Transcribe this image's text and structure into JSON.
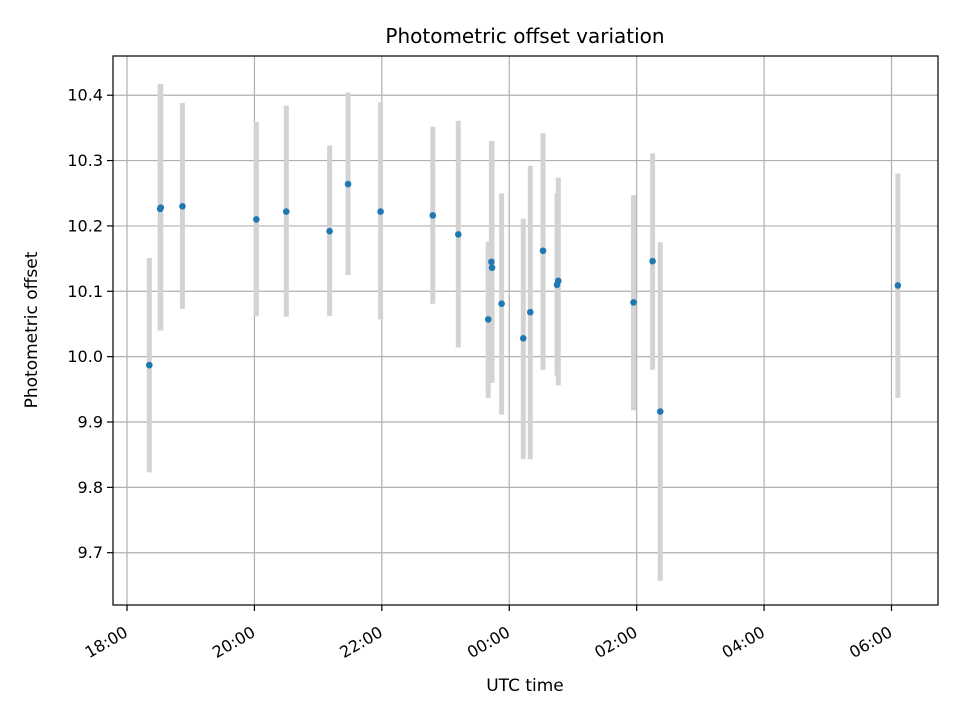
{
  "chart_data": {
    "type": "scatter",
    "title": "Photometric offset variation",
    "xlabel": "UTC time",
    "ylabel": "Photometric offset",
    "x_axis_kind": "time (hours; values after 24 are the next day)",
    "xlim": [
      17.78,
      30.73
    ],
    "ylim": [
      9.62,
      10.46
    ],
    "xticks": [
      18,
      20,
      22,
      24,
      26,
      28,
      30
    ],
    "xtick_labels": [
      "18:00",
      "20:00",
      "22:00",
      "00:00",
      "02:00",
      "04:00",
      "06:00"
    ],
    "yticks": [
      9.7,
      9.8,
      9.9,
      10.0,
      10.1,
      10.2,
      10.3,
      10.4
    ],
    "ytick_labels": [
      "9.7",
      "9.8",
      "9.9",
      "10.0",
      "10.1",
      "10.2",
      "10.3",
      "10.4"
    ],
    "grid": true,
    "legend": "none",
    "point_color": "#1f77b4",
    "errorbar_color": "#d3d3d3",
    "points": [
      {
        "time": "18:21",
        "x": 18.35,
        "y": 9.987,
        "yerr_low": 9.823,
        "yerr_high": 10.151
      },
      {
        "time": "18:31",
        "x": 18.52,
        "y": 10.226,
        "yerr_low": 10.04,
        "yerr_high": 10.417
      },
      {
        "time": "18:32",
        "x": 18.53,
        "y": 10.228,
        "yerr_low": 10.04,
        "yerr_high": 10.417
      },
      {
        "time": "18:52",
        "x": 18.87,
        "y": 10.23,
        "yerr_low": 10.073,
        "yerr_high": 10.388
      },
      {
        "time": "20:02",
        "x": 20.03,
        "y": 10.21,
        "yerr_low": 10.062,
        "yerr_high": 10.359
      },
      {
        "time": "20:30",
        "x": 20.5,
        "y": 10.222,
        "yerr_low": 10.061,
        "yerr_high": 10.384
      },
      {
        "time": "21:11",
        "x": 21.18,
        "y": 10.192,
        "yerr_low": 10.062,
        "yerr_high": 10.323
      },
      {
        "time": "21:28",
        "x": 21.47,
        "y": 10.264,
        "yerr_low": 10.125,
        "yerr_high": 10.404
      },
      {
        "time": "21:59",
        "x": 21.98,
        "y": 10.222,
        "yerr_low": 10.057,
        "yerr_high": 10.389
      },
      {
        "time": "22:48",
        "x": 22.8,
        "y": 10.216,
        "yerr_low": 10.081,
        "yerr_high": 10.352
      },
      {
        "time": "23:12",
        "x": 23.2,
        "y": 10.187,
        "yerr_low": 10.014,
        "yerr_high": 10.361
      },
      {
        "time": "23:40",
        "x": 23.67,
        "y": 10.057,
        "yerr_low": 9.937,
        "yerr_high": 10.176
      },
      {
        "time": "23:43",
        "x": 23.72,
        "y": 10.145,
        "yerr_low": 9.96,
        "yerr_high": 10.33
      },
      {
        "time": "23:44",
        "x": 23.73,
        "y": 10.136,
        "yerr_low": 9.96,
        "yerr_high": 10.33
      },
      {
        "time": "23:53",
        "x": 23.88,
        "y": 10.081,
        "yerr_low": 9.911,
        "yerr_high": 10.25
      },
      {
        "time": "00:13",
        "x": 24.22,
        "y": 10.028,
        "yerr_low": 9.843,
        "yerr_high": 10.211
      },
      {
        "time": "00:20",
        "x": 24.33,
        "y": 10.068,
        "yerr_low": 9.843,
        "yerr_high": 10.292
      },
      {
        "time": "00:32",
        "x": 24.53,
        "y": 10.162,
        "yerr_low": 9.98,
        "yerr_high": 10.342
      },
      {
        "time": "00:45",
        "x": 24.75,
        "y": 10.11,
        "yerr_low": 9.971,
        "yerr_high": 10.25
      },
      {
        "time": "00:46",
        "x": 24.77,
        "y": 10.116,
        "yerr_low": 9.956,
        "yerr_high": 10.274
      },
      {
        "time": "01:57",
        "x": 25.95,
        "y": 10.083,
        "yerr_low": 9.918,
        "yerr_high": 10.247
      },
      {
        "time": "02:15",
        "x": 26.25,
        "y": 10.146,
        "yerr_low": 9.98,
        "yerr_high": 10.311
      },
      {
        "time": "02:22",
        "x": 26.37,
        "y": 9.916,
        "yerr_low": 9.657,
        "yerr_high": 10.175
      },
      {
        "time": "06:06",
        "x": 30.1,
        "y": 10.109,
        "yerr_low": 9.937,
        "yerr_high": 10.28
      }
    ]
  }
}
